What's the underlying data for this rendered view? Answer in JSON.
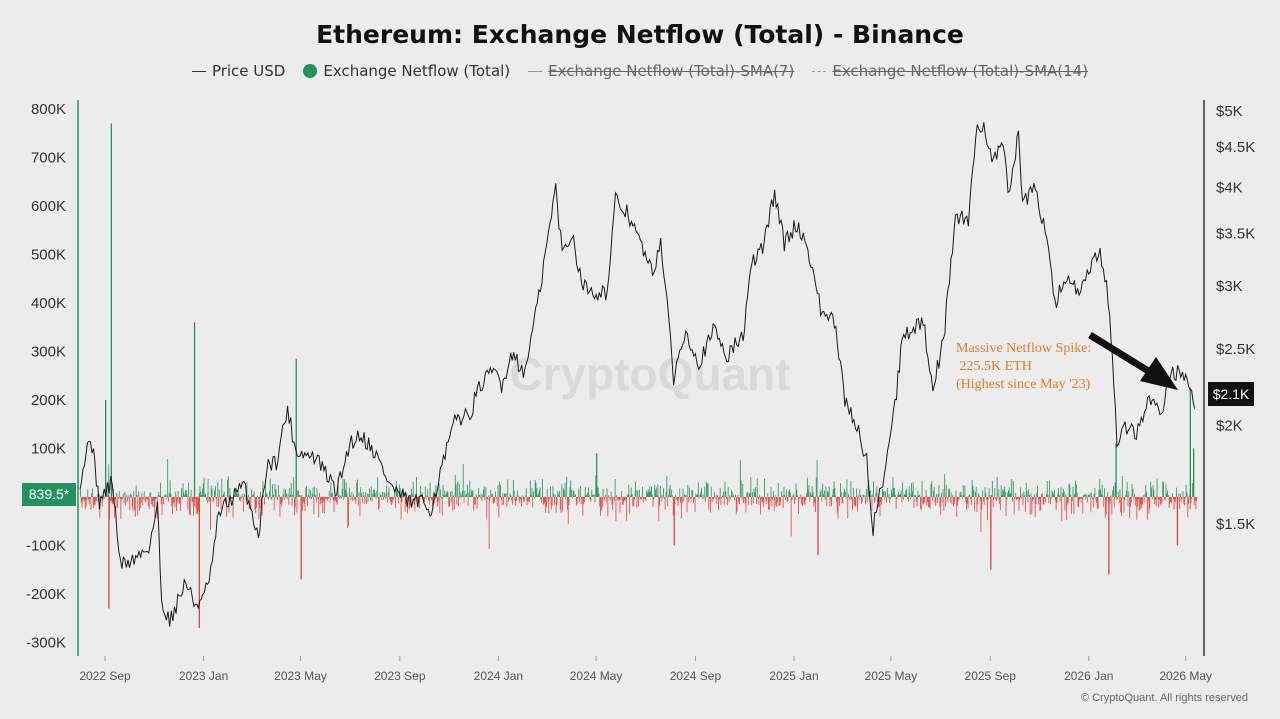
{
  "title": "Ethereum: Exchange Netflow (Total) - Binance",
  "legend": [
    {
      "label": "Price USD",
      "style": "line",
      "enabled": true
    },
    {
      "label": "Exchange Netflow (Total)",
      "style": "dot",
      "enabled": true
    },
    {
      "label": "Exchange Netflow (Total)-SMA(7)",
      "style": "line",
      "enabled": false
    },
    {
      "label": "Exchange Netflow (Total)-SMA(14)",
      "style": "dashed",
      "enabled": false
    }
  ],
  "annotation": {
    "line1": "Massive Netflow Spike:",
    "line2": " 225.5K ETH",
    "line3": "(Highest since May '23)"
  },
  "copyright": "© CryptoQuant. All rights reserved",
  "watermark": "CryptoQuant",
  "colors": {
    "price_line": "#1a1a1a",
    "inflow": "#239260",
    "outflow": "#e0443d",
    "arrow": "#111111",
    "annotation": "#e07b2a"
  },
  "chart_data": {
    "type": "bar+line",
    "title": "Ethereum: Exchange Netflow (Total) - Binance",
    "x_ticks": [
      "2022 Sep",
      "2023 Jan",
      "2023 May",
      "2023 Sep",
      "2024 Jan",
      "2024 May",
      "2024 Sep",
      "2025 Jan",
      "2025 May",
      "2025 Sep",
      "2026 Jan",
      "2026 May"
    ],
    "x_range": [
      "2022-08-01",
      "2026-05-15"
    ],
    "left_axis": {
      "label": "Exchange Netflow (Total)",
      "ticks": [
        "800K",
        "700K",
        "600K",
        "500K",
        "400K",
        "300K",
        "200K",
        "100K",
        "-100K",
        "-200K",
        "-300K"
      ],
      "tick_values": [
        800000,
        700000,
        600000,
        500000,
        400000,
        300000,
        200000,
        100000,
        -100000,
        -200000,
        -300000
      ],
      "range": [
        -330000,
        800000
      ],
      "current_badge": "839.5*"
    },
    "right_axis": {
      "label": "Price USD",
      "scale": "log",
      "ticks": [
        "$5K",
        "$4.5K",
        "$4K",
        "$3.5K",
        "$3K",
        "$2.5K",
        "$2K",
        "$1.5K"
      ],
      "tick_values": [
        5000,
        4500,
        4000,
        3500,
        3000,
        2500,
        2000,
        1500
      ],
      "current_badge": "$2.1K"
    },
    "price_series": {
      "name": "Price USD",
      "points": [
        [
          "2022-08-01",
          1700
        ],
        [
          "2022-08-14",
          1950
        ],
        [
          "2022-08-25",
          1600
        ],
        [
          "2022-09-10",
          1700
        ],
        [
          "2022-09-20",
          1330
        ],
        [
          "2022-10-05",
          1350
        ],
        [
          "2022-10-25",
          1400
        ],
        [
          "2022-11-05",
          1580
        ],
        [
          "2022-11-10",
          1200
        ],
        [
          "2022-11-20",
          1130
        ],
        [
          "2022-12-10",
          1270
        ],
        [
          "2022-12-20",
          1190
        ],
        [
          "2022-12-31",
          1200
        ],
        [
          "2023-01-10",
          1300
        ],
        [
          "2023-01-20",
          1550
        ],
        [
          "2023-02-01",
          1600
        ],
        [
          "2023-02-20",
          1680
        ],
        [
          "2023-03-10",
          1450
        ],
        [
          "2023-03-20",
          1780
        ],
        [
          "2023-04-01",
          1800
        ],
        [
          "2023-04-15",
          2100
        ],
        [
          "2023-04-25",
          1860
        ],
        [
          "2023-05-10",
          1830
        ],
        [
          "2023-05-20",
          1820
        ],
        [
          "2023-06-15",
          1650
        ],
        [
          "2023-07-01",
          1900
        ],
        [
          "2023-07-15",
          1950
        ],
        [
          "2023-08-01",
          1850
        ],
        [
          "2023-08-20",
          1680
        ],
        [
          "2023-09-10",
          1600
        ],
        [
          "2023-09-25",
          1600
        ],
        [
          "2023-10-10",
          1570
        ],
        [
          "2023-10-25",
          1800
        ],
        [
          "2023-11-10",
          2050
        ],
        [
          "2023-11-25",
          2050
        ],
        [
          "2023-12-10",
          2250
        ],
        [
          "2023-12-28",
          2350
        ],
        [
          "2024-01-05",
          2250
        ],
        [
          "2024-01-20",
          2500
        ],
        [
          "2024-02-01",
          2300
        ],
        [
          "2024-02-20",
          2900
        ],
        [
          "2024-03-05",
          3600
        ],
        [
          "2024-03-12",
          4000
        ],
        [
          "2024-03-20",
          3300
        ],
        [
          "2024-04-01",
          3500
        ],
        [
          "2024-04-15",
          3000
        ],
        [
          "2024-05-01",
          2950
        ],
        [
          "2024-05-15",
          2950
        ],
        [
          "2024-05-25",
          3850
        ],
        [
          "2024-06-10",
          3700
        ],
        [
          "2024-06-25",
          3400
        ],
        [
          "2024-07-10",
          3100
        ],
        [
          "2024-07-20",
          3450
        ],
        [
          "2024-08-05",
          2300
        ],
        [
          "2024-08-20",
          2650
        ],
        [
          "2024-09-05",
          2400
        ],
        [
          "2024-09-25",
          2650
        ],
        [
          "2024-10-10",
          2450
        ],
        [
          "2024-10-30",
          2600
        ],
        [
          "2024-11-10",
          3200
        ],
        [
          "2024-11-25",
          3400
        ],
        [
          "2024-12-08",
          3950
        ],
        [
          "2024-12-20",
          3400
        ],
        [
          "2025-01-05",
          3600
        ],
        [
          "2025-01-20",
          3300
        ],
        [
          "2025-02-03",
          2800
        ],
        [
          "2025-02-20",
          2700
        ],
        [
          "2025-03-05",
          2150
        ],
        [
          "2025-03-20",
          2000
        ],
        [
          "2025-04-01",
          1800
        ],
        [
          "2025-04-09",
          1480
        ],
        [
          "2025-04-25",
          1800
        ],
        [
          "2025-05-08",
          2200
        ],
        [
          "2025-05-15",
          2600
        ],
        [
          "2025-06-10",
          2700
        ],
        [
          "2025-06-22",
          2250
        ],
        [
          "2025-07-05",
          2550
        ],
        [
          "2025-07-20",
          3700
        ],
        [
          "2025-08-05",
          3600
        ],
        [
          "2025-08-14",
          4700
        ],
        [
          "2025-08-24",
          4800
        ],
        [
          "2025-09-05",
          4300
        ],
        [
          "2025-09-15",
          4600
        ],
        [
          "2025-09-25",
          3900
        ],
        [
          "2025-10-06",
          4700
        ],
        [
          "2025-10-11",
          3800
        ],
        [
          "2025-10-25",
          4000
        ],
        [
          "2025-11-10",
          3500
        ],
        [
          "2025-11-20",
          2850
        ],
        [
          "2025-12-05",
          3100
        ],
        [
          "2025-12-20",
          2900
        ],
        [
          "2026-01-05",
          3200
        ],
        [
          "2026-01-15",
          3300
        ],
        [
          "2026-01-25",
          2900
        ],
        [
          "2026-02-01",
          2300
        ],
        [
          "2026-02-05",
          1850
        ],
        [
          "2026-02-15",
          2000
        ],
        [
          "2026-03-01",
          1950
        ],
        [
          "2026-03-15",
          2150
        ],
        [
          "2026-04-01",
          2100
        ],
        [
          "2026-04-15",
          2350
        ],
        [
          "2026-05-01",
          2300
        ],
        [
          "2026-05-12",
          2100
        ]
      ]
    },
    "netflow_spikes": {
      "name": "Exchange Netflow (Total)",
      "points": [
        [
          "2022-09-01",
          200000
        ],
        [
          "2022-09-05",
          -230000
        ],
        [
          "2022-09-08",
          770000
        ],
        [
          "2022-12-20",
          360000
        ],
        [
          "2022-12-26",
          -270000
        ],
        [
          "2023-04-25",
          285000
        ],
        [
          "2023-05-01",
          -170000
        ],
        [
          "2024-05-01",
          90000
        ],
        [
          "2024-08-05",
          -100000
        ],
        [
          "2025-01-30",
          -120000
        ],
        [
          "2025-09-01",
          -150000
        ],
        [
          "2026-01-25",
          -160000
        ],
        [
          "2026-02-03",
          110000
        ],
        [
          "2026-04-20",
          -100000
        ],
        [
          "2026-05-06",
          225500
        ],
        [
          "2026-05-10",
          100000
        ]
      ]
    }
  }
}
